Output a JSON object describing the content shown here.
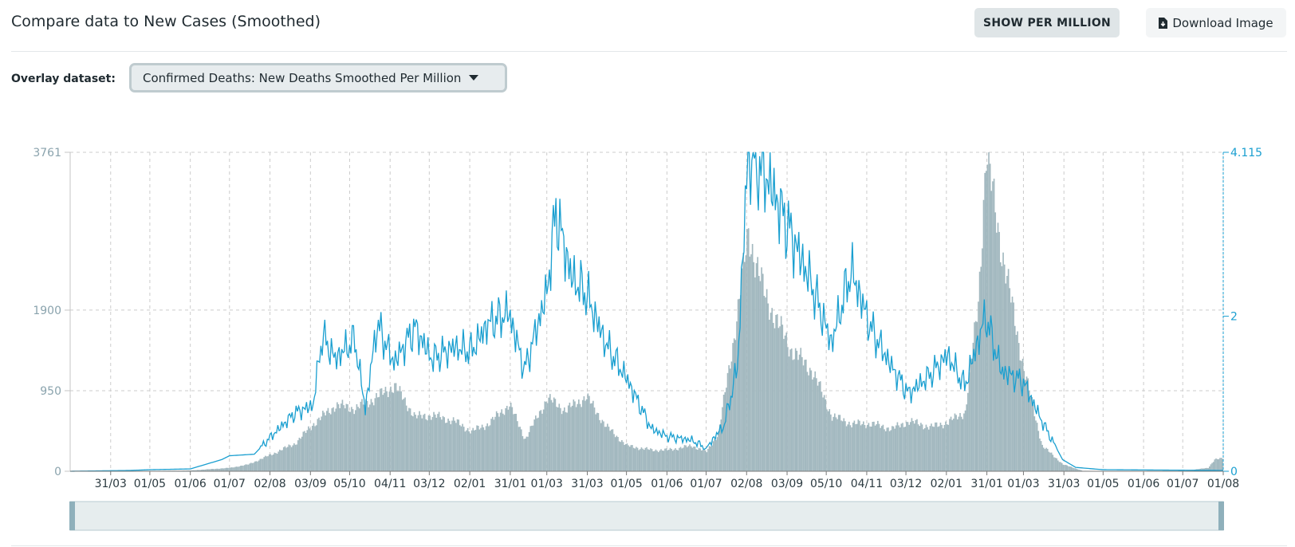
{
  "header": {
    "title": "Compare data to New Cases (Smoothed)",
    "per_million_label": "SHOW PER MILLION",
    "download_label": "Download Image",
    "download_icon": "file-download-icon"
  },
  "overlay": {
    "label": "Overlay dataset:",
    "selected": "Confirmed Deaths: New Deaths Smoothed Per Million"
  },
  "colors": {
    "bars": "#a2b8bf",
    "line": "#1a9fd0",
    "left_axis": "#8aa3ad",
    "right_axis": "#1a9fd0",
    "grid": "#cccccc",
    "navigator_fill": "#e6edee",
    "navigator_handle": "#8fb0bb"
  },
  "chart_data": {
    "type": "bar+line",
    "x_tick_labels": [
      "31/03",
      "01/05",
      "01/06",
      "01/07",
      "02/08",
      "03/09",
      "05/10",
      "04/11",
      "03/12",
      "02/01",
      "31/01",
      "01/03",
      "31/03",
      "01/05",
      "01/06",
      "01/07",
      "02/08",
      "03/09",
      "05/10",
      "04/11",
      "03/12",
      "02/01",
      "31/01",
      "01/03",
      "31/03",
      "01/05",
      "01/06",
      "01/07",
      "01/08"
    ],
    "x_start": "2020-03-01",
    "x_end": "2022-08-01",
    "left_axis": {
      "ticks": [
        0,
        950,
        1900,
        3761
      ],
      "ylim": [
        0,
        3761
      ]
    },
    "right_axis": {
      "ticks": [
        "0",
        "2",
        "4.115"
      ],
      "ylim": [
        0,
        4.115
      ]
    },
    "series": [
      {
        "type": "bar",
        "keyframes": [
          [
            "2020-03-01",
            0
          ],
          [
            "2020-03-31",
            2
          ],
          [
            "2020-05-01",
            4
          ],
          [
            "2020-06-01",
            10
          ],
          [
            "2020-07-01",
            40
          ],
          [
            "2020-07-15",
            80
          ],
          [
            "2020-08-02",
            200
          ],
          [
            "2020-08-20",
            330
          ],
          [
            "2020-09-03",
            560
          ],
          [
            "2020-09-20",
            780
          ],
          [
            "2020-10-05",
            740
          ],
          [
            "2020-10-20",
            860
          ],
          [
            "2020-11-04",
            1010
          ],
          [
            "2020-11-20",
            640
          ],
          [
            "2020-12-03",
            660
          ],
          [
            "2020-12-20",
            590
          ],
          [
            "2021-01-02",
            470
          ],
          [
            "2021-01-15",
            560
          ],
          [
            "2021-01-31",
            790
          ],
          [
            "2021-02-12",
            380
          ],
          [
            "2021-03-01",
            860
          ],
          [
            "2021-03-15",
            720
          ],
          [
            "2021-03-31",
            880
          ],
          [
            "2021-04-15",
            530
          ],
          [
            "2021-05-01",
            300
          ],
          [
            "2021-05-20",
            250
          ],
          [
            "2021-06-01",
            250
          ],
          [
            "2021-06-20",
            300
          ],
          [
            "2021-07-01",
            230
          ],
          [
            "2021-07-10",
            450
          ],
          [
            "2021-07-20",
            1380
          ],
          [
            "2021-08-02",
            2800
          ],
          [
            "2021-08-15",
            2050
          ],
          [
            "2021-09-03",
            1450
          ],
          [
            "2021-09-20",
            1180
          ],
          [
            "2021-10-05",
            650
          ],
          [
            "2021-10-20",
            560
          ],
          [
            "2021-11-04",
            560
          ],
          [
            "2021-11-20",
            500
          ],
          [
            "2021-12-03",
            590
          ],
          [
            "2021-12-20",
            520
          ],
          [
            "2022-01-02",
            580
          ],
          [
            "2022-01-15",
            700
          ],
          [
            "2022-01-25",
            2000
          ],
          [
            "2022-01-31",
            3761
          ],
          [
            "2022-02-12",
            2600
          ],
          [
            "2022-03-01",
            1200
          ],
          [
            "2022-03-15",
            300
          ],
          [
            "2022-03-31",
            80
          ],
          [
            "2022-04-15",
            5
          ],
          [
            "2022-05-01",
            3
          ],
          [
            "2022-06-01",
            3
          ],
          [
            "2022-07-01",
            3
          ],
          [
            "2022-07-20",
            40
          ],
          [
            "2022-07-25",
            140
          ],
          [
            "2022-08-01",
            150
          ]
        ]
      },
      {
        "type": "line",
        "keyframes": [
          [
            "2020-03-01",
            0
          ],
          [
            "2020-04-15",
            0.01
          ],
          [
            "2020-05-01",
            0.02
          ],
          [
            "2020-06-01",
            0.03
          ],
          [
            "2020-06-25",
            0.15
          ],
          [
            "2020-07-01",
            0.2
          ],
          [
            "2020-07-20",
            0.22
          ],
          [
            "2020-08-02",
            0.45
          ],
          [
            "2020-08-20",
            0.75
          ],
          [
            "2020-09-03",
            0.85
          ],
          [
            "2020-09-10",
            1.75
          ],
          [
            "2020-09-20",
            1.45
          ],
          [
            "2020-10-05",
            1.7
          ],
          [
            "2020-10-13",
            0.8
          ],
          [
            "2020-10-22",
            1.9
          ],
          [
            "2020-11-04",
            1.4
          ],
          [
            "2020-11-20",
            1.85
          ],
          [
            "2020-12-03",
            1.45
          ],
          [
            "2020-12-20",
            1.6
          ],
          [
            "2021-01-02",
            1.55
          ],
          [
            "2021-01-15",
            1.9
          ],
          [
            "2021-01-31",
            2.05
          ],
          [
            "2021-02-12",
            1.3
          ],
          [
            "2021-03-01",
            2.3
          ],
          [
            "2021-03-08",
            3.35
          ],
          [
            "2021-03-20",
            2.5
          ],
          [
            "2021-03-31",
            2.3
          ],
          [
            "2021-04-15",
            1.65
          ],
          [
            "2021-05-01",
            1.2
          ],
          [
            "2021-05-20",
            0.55
          ],
          [
            "2021-06-01",
            0.45
          ],
          [
            "2021-06-20",
            0.4
          ],
          [
            "2021-07-01",
            0.3
          ],
          [
            "2021-07-15",
            0.6
          ],
          [
            "2021-07-25",
            1.35
          ],
          [
            "2021-08-02",
            4.1
          ],
          [
            "2021-08-15",
            3.85
          ],
          [
            "2021-09-03",
            3.1
          ],
          [
            "2021-09-20",
            2.4
          ],
          [
            "2021-10-05",
            1.65
          ],
          [
            "2021-10-20",
            2.6
          ],
          [
            "2021-11-04",
            1.85
          ],
          [
            "2021-11-20",
            1.35
          ],
          [
            "2021-12-03",
            1.0
          ],
          [
            "2021-12-20",
            1.25
          ],
          [
            "2022-01-02",
            1.5
          ],
          [
            "2022-01-15",
            1.1
          ],
          [
            "2022-01-31",
            2.0
          ],
          [
            "2022-02-12",
            1.3
          ],
          [
            "2022-03-01",
            1.15
          ],
          [
            "2022-03-15",
            0.65
          ],
          [
            "2022-03-31",
            0.15
          ],
          [
            "2022-04-10",
            0.05
          ],
          [
            "2022-05-01",
            0.02
          ],
          [
            "2022-08-01",
            0.01
          ]
        ]
      }
    ],
    "navigator": "full-range"
  }
}
